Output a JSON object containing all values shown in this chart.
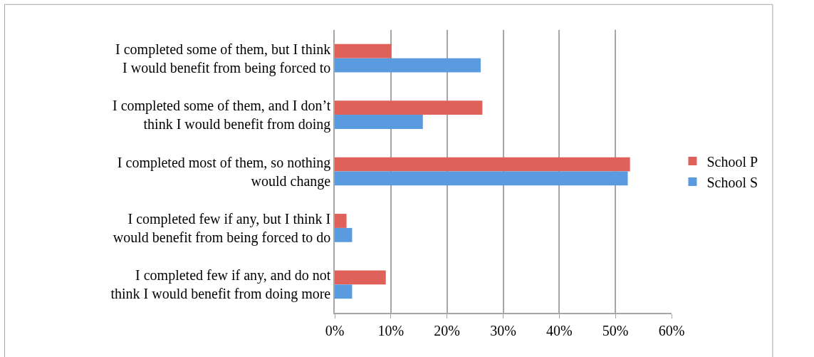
{
  "chart_data": {
    "type": "bar",
    "orientation": "horizontal",
    "categories": [
      "I completed some of them, but I think I would benefit from being forced to",
      "I completed some of them, and I don’t think I would benefit from doing",
      "I completed most of them, so nothing would change",
      "I completed few if any, but I think I would benefit from being forced to do",
      "I completed few if any, and do not think I would benefit from doing more"
    ],
    "series": [
      {
        "name": "School P",
        "color": "#e0605a",
        "values": [
          10.1,
          26.3,
          52.6,
          2.1,
          9.1
        ]
      },
      {
        "name": "School S",
        "color": "#5a9be0",
        "values": [
          26.0,
          15.7,
          52.2,
          3.1,
          3.1
        ]
      }
    ],
    "xlim": [
      0,
      60
    ],
    "xticks": [
      {
        "value": 0,
        "label": "0%"
      },
      {
        "value": 10,
        "label": "10%"
      },
      {
        "value": 20,
        "label": "20%"
      },
      {
        "value": 30,
        "label": "30%"
      },
      {
        "value": 40,
        "label": "40%"
      },
      {
        "value": 50,
        "label": "50%"
      },
      {
        "value": 60,
        "label": "60%"
      }
    ],
    "grid": "x",
    "legend": "right"
  }
}
